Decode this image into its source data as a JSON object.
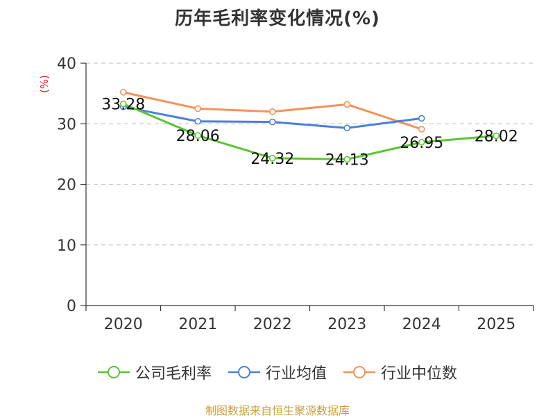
{
  "chart_data": {
    "type": "line",
    "title": "历年毛利率变化情况(%)",
    "xlabel": "",
    "ylabel": "(%)",
    "categories": [
      "2020",
      "2021",
      "2022",
      "2023",
      "2024",
      "2025"
    ],
    "ylim": [
      0,
      40
    ],
    "yticks": [
      0,
      10,
      20,
      30,
      40
    ],
    "grid": true,
    "legend_position": "bottom",
    "series": [
      {
        "name": "公司毛利率",
        "color": "#5ac530",
        "values": [
          33.28,
          28.06,
          24.32,
          24.13,
          26.95,
          28.02
        ],
        "labels": [
          "33.28",
          "28.06",
          "24.32",
          "24.13",
          "26.95",
          "28.02"
        ]
      },
      {
        "name": "行业均值",
        "color": "#4a7fdc",
        "values": [
          32.8,
          30.4,
          30.3,
          29.3,
          30.9,
          null
        ]
      },
      {
        "name": "行业中位数",
        "color": "#f5915a",
        "values": [
          35.2,
          32.5,
          32.0,
          33.2,
          29.1,
          null
        ]
      }
    ]
  },
  "source": "制图数据来自恒生聚源数据库"
}
